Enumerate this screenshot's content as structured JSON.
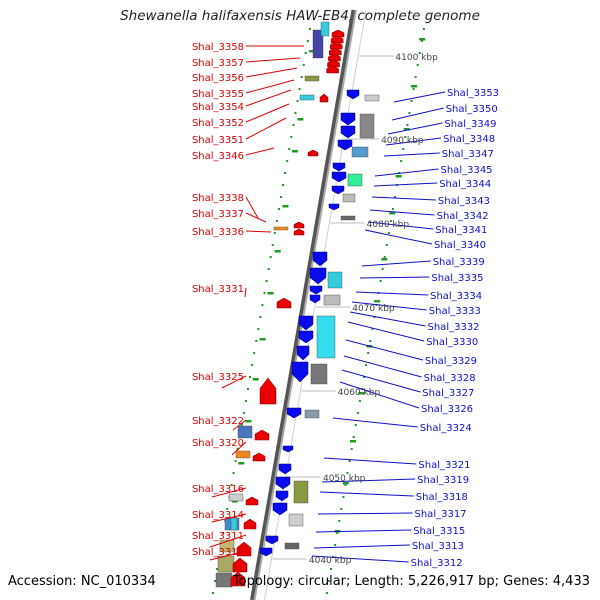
{
  "title": "Shewanella halifaxensis HAW-EB4, complete genome",
  "footer": {
    "accession": "Accession: NC_010334",
    "summary": "Topology: circular; Length: 5,226,917 bp; Genes: 4,433"
  },
  "colors": {
    "left_label": "#dd0000",
    "right_label": "#1010cc",
    "backbone": "#888888",
    "tick": "#229922",
    "reverse_arrow": "#e80000",
    "forward_arrow": "#0a0aee"
  },
  "scale_labels": [
    "4100 kbp",
    "4090 kbp",
    "4080 kbp",
    "4070 kbp",
    "4060 kbp",
    "4050 kbp",
    "4040 kbp"
  ],
  "left_genes": [
    "Shal_3358",
    "Shal_3357",
    "Shal_3356",
    "Shal_3355",
    "Shal_3354",
    "Shal_3352",
    "Shal_3351",
    "Shal_3346",
    "Shal_3338",
    "Shal_3337",
    "Shal_3336",
    "Shal_3331",
    "Shal_3325",
    "Shal_3322",
    "Shal_3320",
    "Shal_3316",
    "Shal_3314",
    "Shal_3311",
    "Shal_3310"
  ],
  "right_genes": [
    "Shal_3353",
    "Shal_3350",
    "Shal_3349",
    "Shal_3348",
    "Shal_3347",
    "Shal_3345",
    "Shal_3344",
    "Shal_3343",
    "Shal_3342",
    "Shal_3341",
    "Shal_3340",
    "Shal_3339",
    "Shal_3335",
    "Shal_3334",
    "Shal_3333",
    "Shal_3332",
    "Shal_3330",
    "Shal_3329",
    "Shal_3328",
    "Shal_3327",
    "Shal_3326",
    "Shal_3324",
    "Shal_3321",
    "Shal_3319",
    "Shal_3318",
    "Shal_3317",
    "Shal_3315",
    "Shal_3313",
    "Shal_3312"
  ]
}
